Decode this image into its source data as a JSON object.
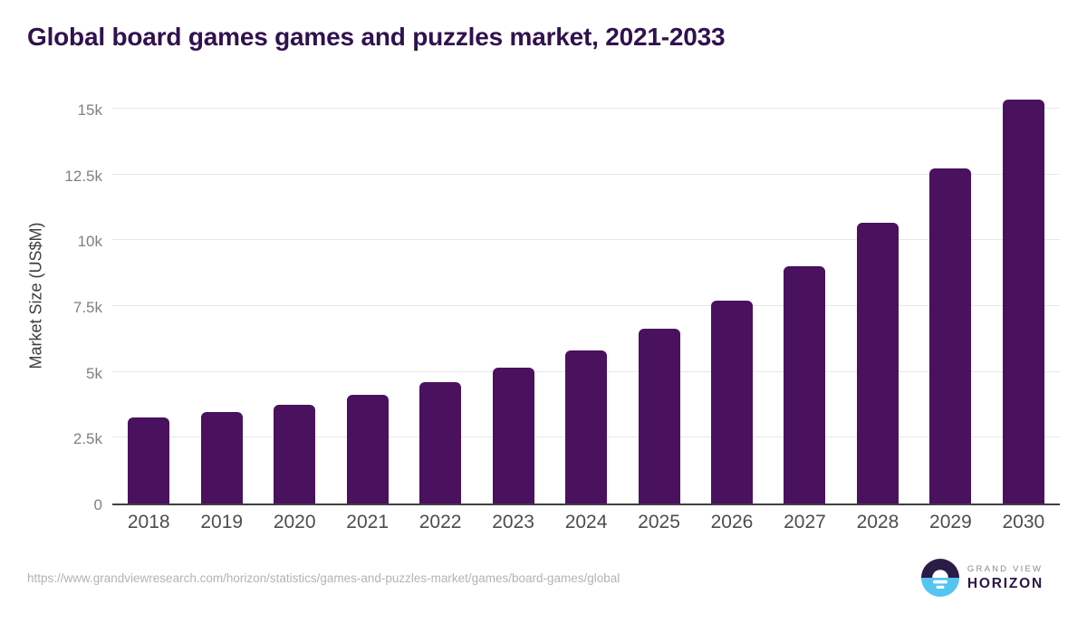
{
  "chart_data": {
    "type": "bar",
    "title": "Global board games games and puzzles market, 2021-2033",
    "categories": [
      "2018",
      "2019",
      "2020",
      "2021",
      "2022",
      "2023",
      "2024",
      "2025",
      "2026",
      "2027",
      "2028",
      "2029",
      "2030"
    ],
    "values": [
      3270,
      3470,
      3760,
      4120,
      4600,
      5150,
      5810,
      6650,
      7700,
      9010,
      10670,
      12740,
      15350
    ],
    "xlabel": "",
    "ylabel": "Market Size (US$M)",
    "ylim": [
      0,
      15000
    ],
    "yticks": [
      {
        "value": 0,
        "label": "0"
      },
      {
        "value": 2500,
        "label": "2.5k"
      },
      {
        "value": 5000,
        "label": "5k"
      },
      {
        "value": 7500,
        "label": "7.5k"
      },
      {
        "value": 10000,
        "label": "10k"
      },
      {
        "value": 12500,
        "label": "12.5k"
      },
      {
        "value": 15000,
        "label": "15k"
      }
    ],
    "grid": true,
    "legend": false,
    "bar_color": "#4a115e",
    "title_color": "#31114e",
    "gridline_color": "#e7e7e7",
    "axis_line_color": "#3f3f3f",
    "ytick_color": "#808080",
    "xtick_color": "#4d4d4d"
  },
  "footer": {
    "source_url": "https://www.grandviewresearch.com/horizon/statistics/games-and-puzzles-market/games/board-games/global",
    "logo": {
      "line1": "GRAND VIEW",
      "line2": "HORIZON",
      "icon": "horizon-sunrise-icon",
      "icon_top_color": "#2b1b47",
      "icon_bottom_color": "#55c4f1"
    }
  }
}
